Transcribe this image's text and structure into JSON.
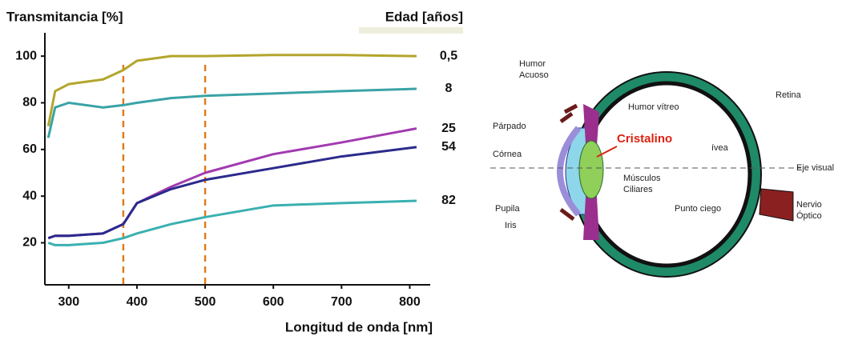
{
  "chart_data": {
    "type": "line",
    "y_label": "Transmitancia [%]",
    "x_label": "Longitud de onda [nm]",
    "legend_title": "Edad [años]",
    "x": [
      270,
      280,
      300,
      350,
      380,
      400,
      450,
      500,
      600,
      700,
      810
    ],
    "series": [
      {
        "name": "0,5",
        "color": "#b3a52c",
        "values": [
          70,
          85,
          88,
          90,
          94,
          98,
          100,
          100,
          100.5,
          100.5,
          100
        ]
      },
      {
        "name": "8",
        "color": "#3aa3a6",
        "values": [
          65,
          78,
          80,
          78,
          79,
          80,
          82,
          83,
          84,
          85,
          86
        ]
      },
      {
        "name": "25",
        "color": "#a23ab0",
        "values": [
          22,
          23,
          23,
          24,
          28,
          37,
          44,
          50,
          58,
          63,
          69
        ]
      },
      {
        "name": "54",
        "color": "#2b2a8c",
        "values": [
          22,
          23,
          23,
          24,
          28,
          37,
          43,
          47,
          52,
          57,
          61
        ]
      },
      {
        "name": "82",
        "color": "#3ab0b0",
        "values": [
          20,
          19,
          19,
          20,
          22,
          24,
          28,
          31,
          36,
          37,
          38
        ]
      }
    ],
    "vlines": [
      380,
      500
    ],
    "vline_color": "#e07b1f",
    "xlim": [
      265,
      830
    ],
    "ylim": [
      2,
      110
    ],
    "xticks": [
      300,
      400,
      500,
      600,
      700,
      800
    ],
    "yticks": [
      20,
      40,
      60,
      80,
      100
    ],
    "grid": false
  },
  "diagram": {
    "labels": {
      "humor_acuoso": [
        "Humor",
        "Acuoso"
      ],
      "parpado": "Párpado",
      "cornea": "Córnea",
      "pupila": "Pupila",
      "iris": "Iris",
      "humor_vitreo": "Humor vítreo",
      "cristalino": "Cristalino",
      "musculos": [
        "Músculos",
        "Ciliares"
      ],
      "retina": "Retina",
      "fovea": "ívea",
      "eje": "Eje visual",
      "punto_ciego": "Punto ciego",
      "nervio": [
        "Nervio",
        "Óptico"
      ]
    }
  }
}
